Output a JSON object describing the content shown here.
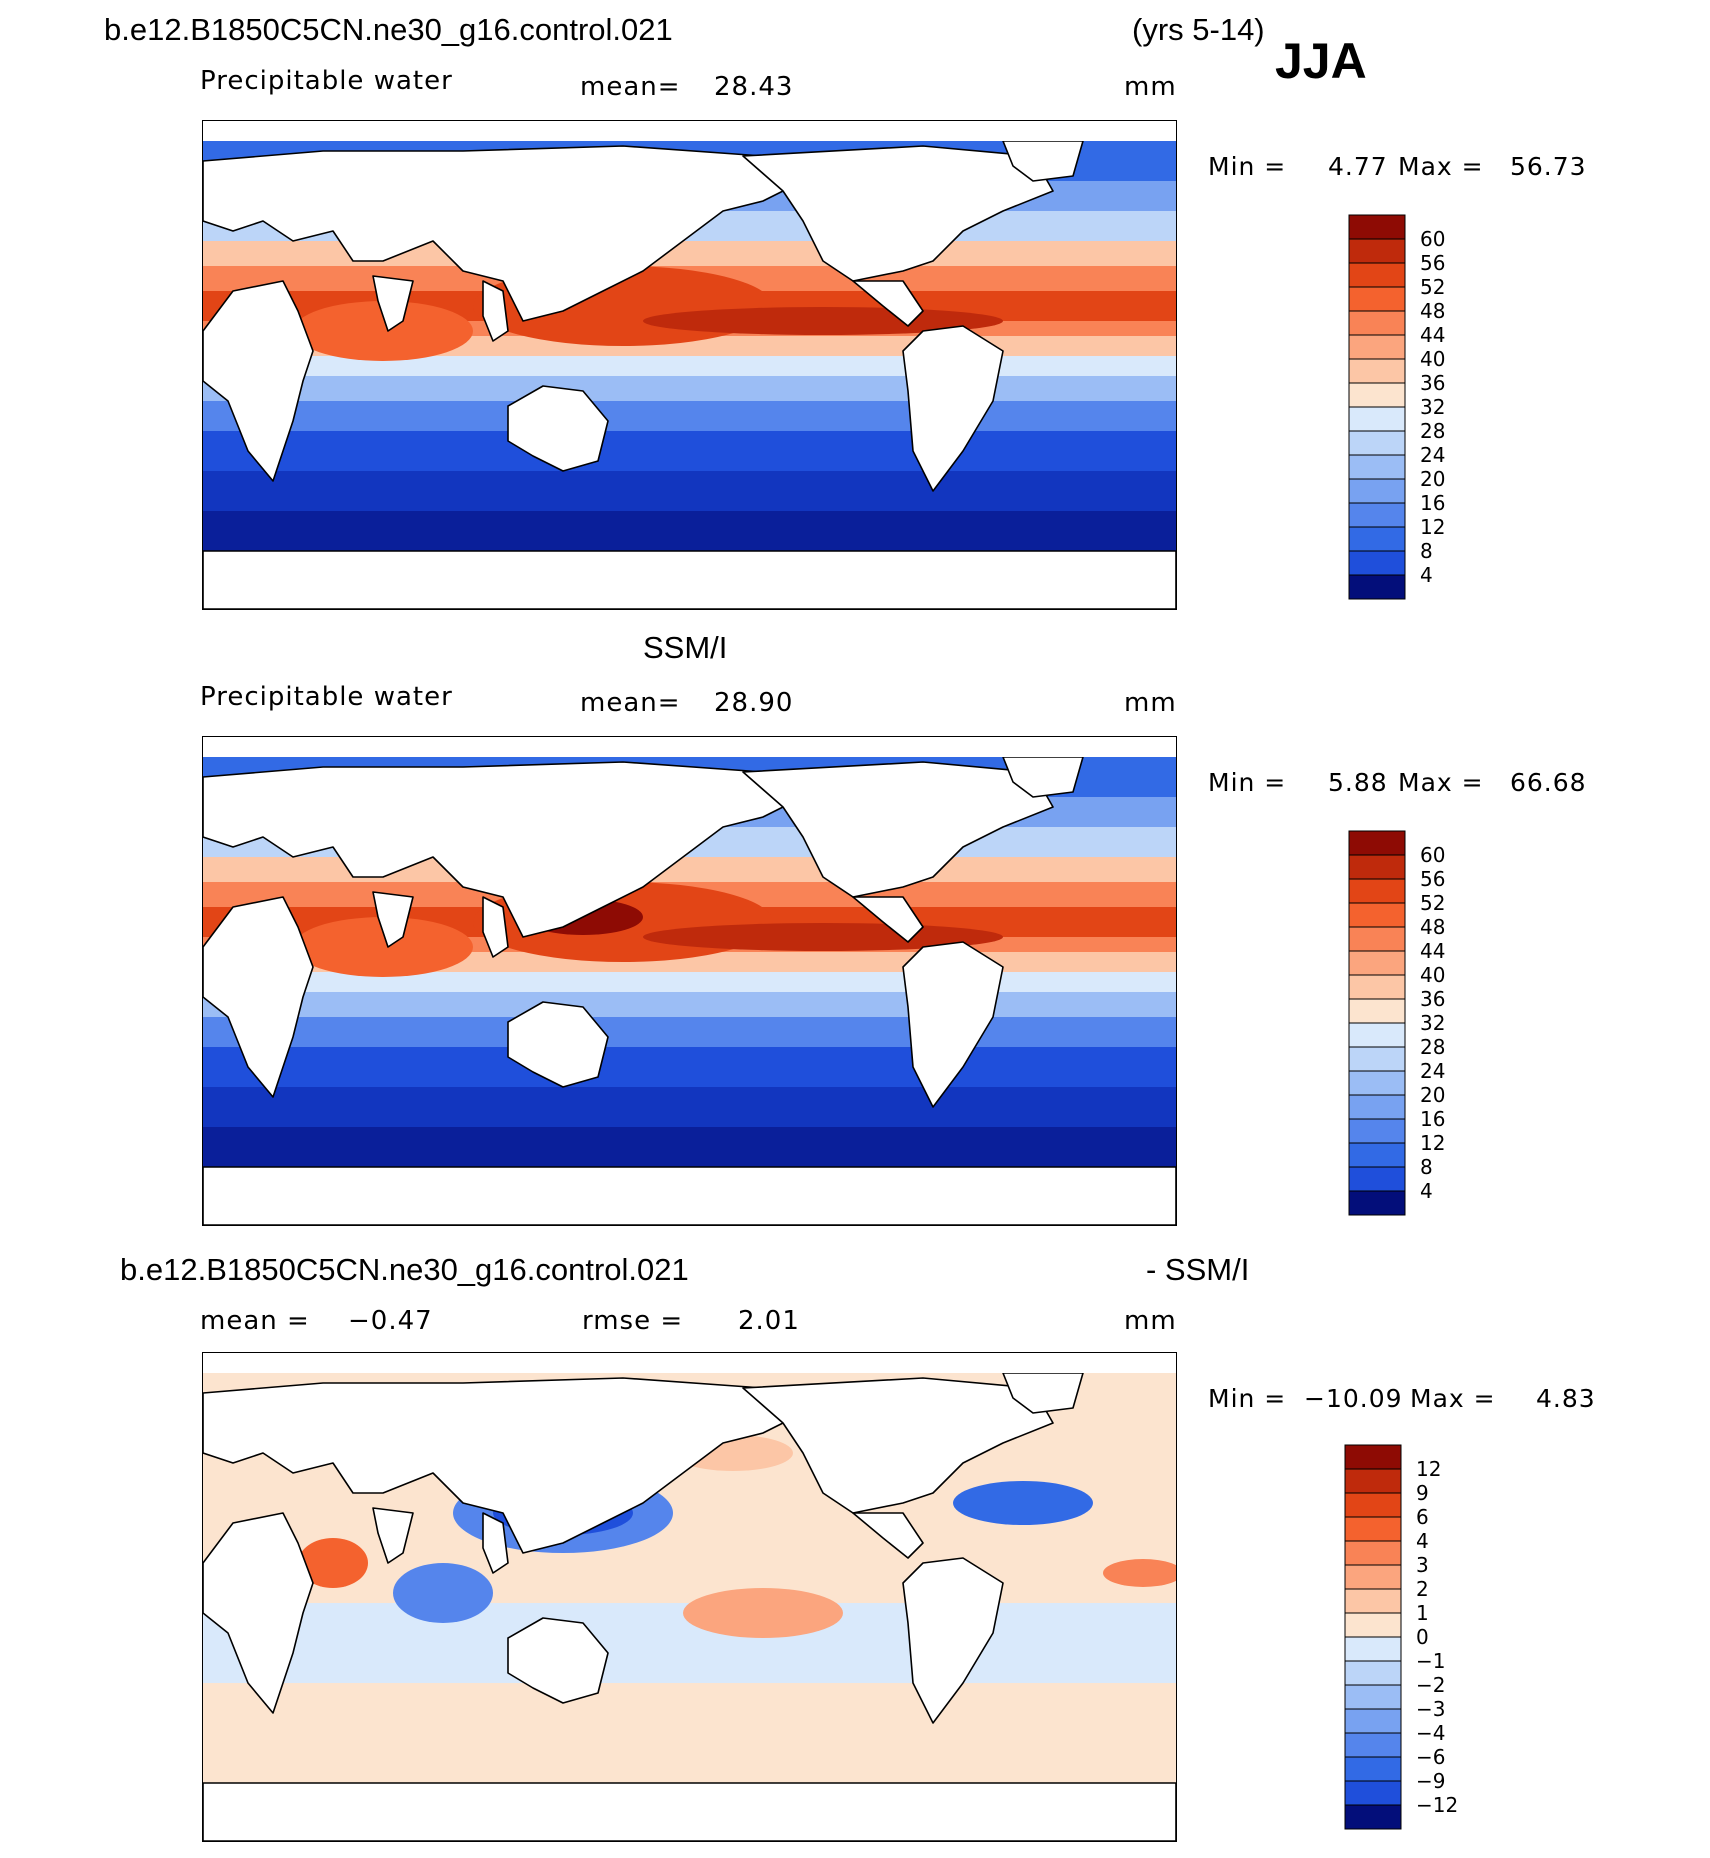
{
  "header": {
    "case_name": "b.e12.B1850C5CN.ne30_g16.control.021",
    "years": "(yrs 5-14)",
    "season": "JJA"
  },
  "colors": {
    "warm": [
      "#fce4cf",
      "#fcc6a6",
      "#fba57e",
      "#f98356",
      "#f4622e",
      "#e24516",
      "#bf2a0c",
      "#8e0b04"
    ],
    "cool": [
      "#d9e9fb",
      "#bcd5f8",
      "#9bbdf5",
      "#78a2f1",
      "#5585ec",
      "#326ae5",
      "#1f4fdb",
      "#1236bf",
      "#0a1f9a",
      "#030e7a"
    ]
  },
  "chart_data": [
    {
      "type": "heatmap",
      "panel": "model",
      "title": "",
      "field_label": "Precipitable water",
      "stat_label": "mean=",
      "stat_value": "28.43",
      "units": "mm",
      "min_label": "Min =",
      "min_value": "4.77",
      "max_label": "Max =",
      "max_value": "56.73",
      "colorbar_levels": [
        "60",
        "56",
        "52",
        "48",
        "44",
        "40",
        "36",
        "32",
        "28",
        "24",
        "20",
        "16",
        "12",
        "8",
        "4"
      ]
    },
    {
      "type": "heatmap",
      "panel": "observation",
      "title": "SSM/I",
      "field_label": "Precipitable water",
      "stat_label": "mean=",
      "stat_value": "28.90",
      "units": "mm",
      "min_label": "Min =",
      "min_value": "5.88",
      "max_label": "Max =",
      "max_value": "66.68",
      "colorbar_levels": [
        "60",
        "56",
        "52",
        "48",
        "44",
        "40",
        "36",
        "32",
        "28",
        "24",
        "20",
        "16",
        "12",
        "8",
        "4"
      ]
    },
    {
      "type": "heatmap",
      "panel": "difference",
      "title_left": "b.e12.B1850C5CN.ne30_g16.control.021",
      "title_right": "- SSM/I",
      "mean_label": "mean =",
      "mean_value": "−0.47",
      "rmse_label": "rmse =",
      "rmse_value": "2.01",
      "units": "mm",
      "min_label": "Min =",
      "min_value": "−10.09",
      "max_label": "Max =",
      "max_value": "4.83",
      "colorbar_levels": [
        "12",
        "9",
        "6",
        "4",
        "3",
        "2",
        "1",
        "0",
        "−1",
        "−2",
        "−3",
        "−4",
        "−6",
        "−9",
        "−12"
      ]
    }
  ]
}
